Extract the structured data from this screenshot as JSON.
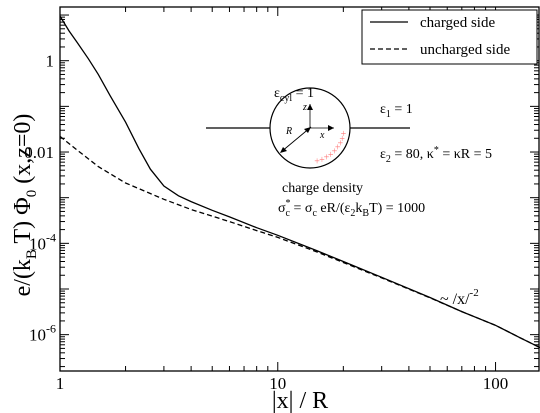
{
  "chart_data": {
    "type": "line",
    "xscale": "log",
    "yscale": "log",
    "xlim": [
      1,
      160
    ],
    "ylim": [
      1.6e-07,
      15
    ],
    "xlabel": "|x| / R",
    "ylabel": "e/(k_B T) Φ_0 (x,z=0)",
    "xticks": [
      {
        "value": 1,
        "label": "1"
      },
      {
        "value": 10,
        "label": "10"
      },
      {
        "value": 100,
        "label": "100"
      }
    ],
    "yticks": [
      {
        "value": 1,
        "label": "1"
      },
      {
        "value": 0.01,
        "label": "0.01"
      },
      {
        "value": 0.0001,
        "label": "10",
        "exp": "-4"
      },
      {
        "value": 1e-06,
        "label": "10",
        "exp": "-6"
      }
    ],
    "legend": {
      "position": "top-right"
    },
    "series": [
      {
        "name": "charged side",
        "style": "solid",
        "color": "#000000",
        "points": [
          [
            1,
            9.5
          ],
          [
            1.1,
            4.5
          ],
          [
            1.2,
            2.5
          ],
          [
            1.35,
            1.1
          ],
          [
            1.5,
            0.5
          ],
          [
            1.7,
            0.17
          ],
          [
            2.0,
            0.045
          ],
          [
            2.3,
            0.012
          ],
          [
            2.6,
            0.0042
          ],
          [
            3.0,
            0.0018
          ],
          [
            3.5,
            0.0011
          ],
          [
            4,
            0.00082
          ],
          [
            5,
            0.00053
          ],
          [
            6,
            0.00038
          ],
          [
            8,
            0.00022
          ],
          [
            10,
            0.00015
          ],
          [
            15,
            7e-05
          ],
          [
            20,
            4e-05
          ],
          [
            30,
            1.8e-05
          ],
          [
            50,
            6.5e-06
          ],
          [
            70,
            3.2e-06
          ],
          [
            100,
            1.6e-06
          ],
          [
            130,
            8.5e-07
          ],
          [
            160,
            5.2e-07
          ]
        ]
      },
      {
        "name": "uncharged side",
        "style": "dashed",
        "color": "#000000",
        "points": [
          [
            1,
            0.022
          ],
          [
            1.2,
            0.011
          ],
          [
            1.5,
            0.0048
          ],
          [
            2,
            0.0021
          ],
          [
            3,
            0.00092
          ],
          [
            4,
            0.00055
          ],
          [
            6,
            0.0003
          ],
          [
            8,
            0.00019
          ],
          [
            10,
            0.000135
          ],
          [
            15,
            6.6e-05
          ],
          [
            20,
            3.8e-05
          ],
          [
            30,
            1.75e-05
          ],
          [
            50,
            6.4e-06
          ],
          [
            70,
            3.2e-06
          ],
          [
            100,
            1.6e-06
          ],
          [
            130,
            8.5e-07
          ],
          [
            160,
            5.2e-07
          ]
        ]
      }
    ],
    "annotations": {
      "eps_cyl": {
        "sym": "ε",
        "sub": "cyl",
        "rest": " = 1"
      },
      "eps1": {
        "sym": "ε",
        "sub": "1",
        "rest": " = 1"
      },
      "eps2": {
        "sym": "ε",
        "sub": "2",
        "rest": " = 80, κ",
        "sup": "*",
        "rest2": " = κR = 5"
      },
      "charge_title": "charge density",
      "sigma": {
        "sym": "σ",
        "sub": "c",
        "sup": "*",
        "mid": " = σ",
        "sub2": "c",
        "rest": " eR/(ε",
        "sub3": "2",
        "rest2": "k",
        "sub4": "B",
        "rest3": "T) = 1000"
      },
      "power_law": {
        "text": "~ /x/",
        "sup": "-2"
      },
      "inset_labels": {
        "z": "z",
        "x": "x",
        "R": "R",
        "plus": "+"
      }
    },
    "inset_color": "#ff7777"
  }
}
